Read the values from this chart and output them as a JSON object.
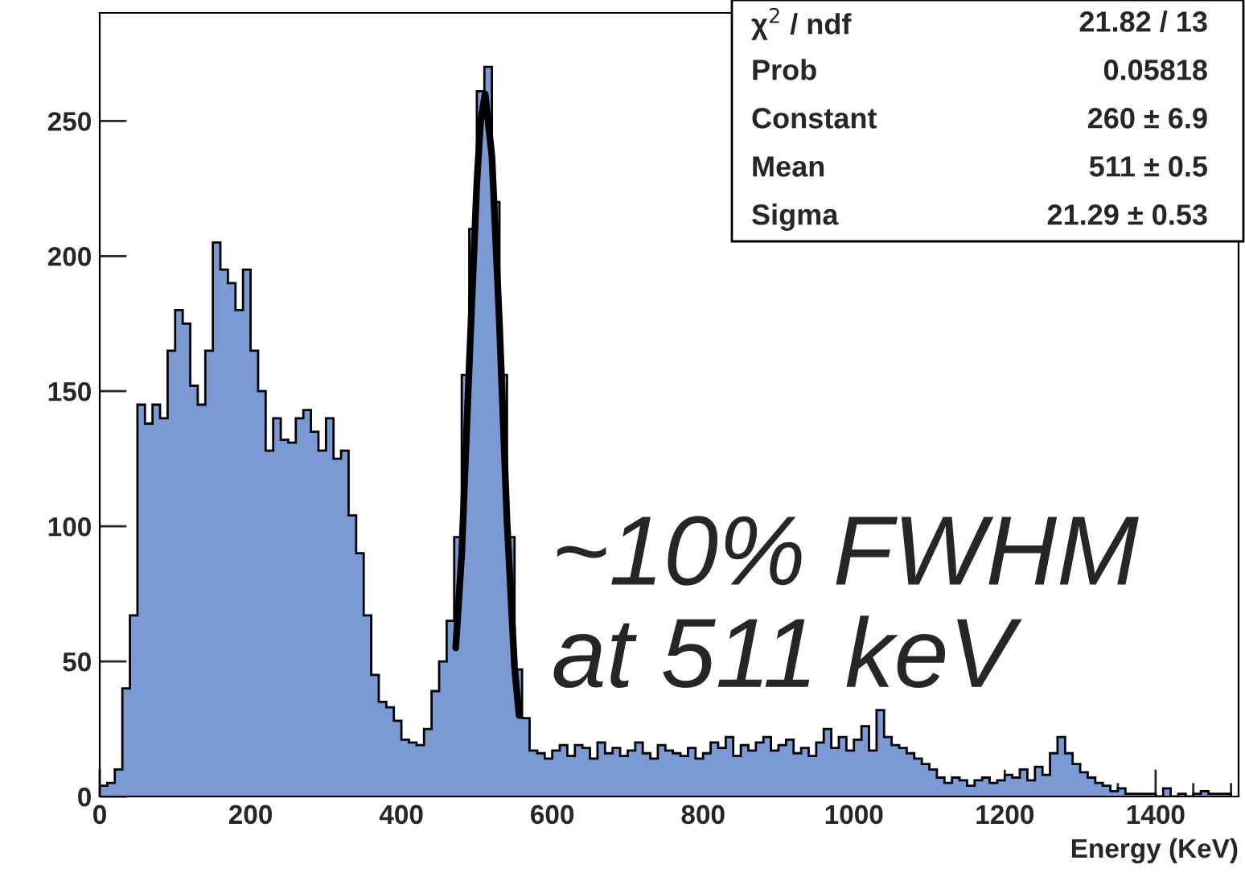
{
  "chart_data": {
    "type": "histogram",
    "xlabel": "Energy (KeV)",
    "annotations": [
      "~10% FWHM\nat 511 keV",
      "χ$^{2}$ / ndf\t21.82 / 13",
      "Prob\t0.05818",
      "Constant\t260 ± 6.9",
      "Mean\t511 ± 0.5",
      "Sigma\t21.29 ± 0.53"
    ],
    "xlim": [
      0,
      1510
    ],
    "ylim": [
      0,
      290
    ],
    "xticks": [
      0,
      {
        "value": 50,
        "label": null
      },
      {
        "value": 100,
        "label": null
      },
      {
        "value": 150,
        "label": null
      },
      200,
      {
        "value": 250,
        "label": null
      },
      {
        "value": 300,
        "label": null
      },
      {
        "value": 350,
        "label": null
      },
      400,
      {
        "value": 450,
        "label": null
      },
      {
        "value": 500,
        "label": null
      },
      {
        "value": 550,
        "label": null
      },
      600,
      {
        "value": 650,
        "label": null
      },
      {
        "value": 700,
        "label": null
      },
      {
        "value": 750,
        "label": null
      },
      800,
      {
        "value": 850,
        "label": null
      },
      {
        "value": 900,
        "label": null
      },
      {
        "value": 950,
        "label": null
      },
      1000,
      {
        "value": 1050,
        "label": null
      },
      {
        "value": 1100,
        "label": null
      },
      {
        "value": 1150,
        "label": null
      },
      1200,
      {
        "value": 1250,
        "label": null
      },
      {
        "value": 1300,
        "label": null
      },
      {
        "value": 1350,
        "label": null
      },
      1400,
      {
        "value": 1450,
        "label": null
      },
      {
        "value": 1500,
        "label": null
      }
    ],
    "yticks": [
      0,
      50,
      100,
      150,
      200,
      250
    ],
    "series": [
      {
        "type": "histogram",
        "color": "#7b9ad3",
        "bins": [
          0,
          10,
          20,
          30,
          40,
          50,
          60,
          70,
          80,
          90,
          100,
          110,
          120,
          130,
          140,
          150,
          160,
          170,
          180,
          190,
          200,
          210,
          220,
          230,
          240,
          250,
          260,
          270,
          280,
          290,
          300,
          310,
          320,
          330,
          340,
          350,
          360,
          370,
          380,
          390,
          400,
          410,
          420,
          430,
          440,
          450,
          460,
          470,
          480,
          490,
          500,
          510,
          520,
          530,
          540,
          550,
          560,
          570,
          580,
          590,
          600,
          610,
          620,
          630,
          640,
          650,
          660,
          670,
          680,
          690,
          700,
          710,
          720,
          730,
          740,
          750,
          760,
          770,
          780,
          790,
          800,
          810,
          820,
          830,
          840,
          850,
          860,
          870,
          880,
          890,
          900,
          910,
          920,
          930,
          940,
          950,
          960,
          970,
          980,
          990,
          1000,
          1010,
          1020,
          1030,
          1040,
          1050,
          1060,
          1070,
          1080,
          1090,
          1100,
          1110,
          1120,
          1130,
          1140,
          1150,
          1160,
          1170,
          1180,
          1190,
          1200,
          1210,
          1220,
          1230,
          1240,
          1250,
          1260,
          1270,
          1280,
          1290,
          1300,
          1310,
          1320,
          1330,
          1340,
          1350,
          1360,
          1370,
          1380,
          1390,
          1400,
          1410,
          1420,
          1430,
          1440,
          1450,
          1460,
          1470,
          1480,
          1490,
          1500
        ],
        "values": [
          4,
          5,
          10,
          40,
          67,
          145,
          138,
          145,
          140,
          165,
          180,
          175,
          152,
          145,
          165,
          205,
          195,
          190,
          180,
          195,
          165,
          150,
          128,
          140,
          132,
          131,
          140,
          143,
          135,
          128,
          140,
          125,
          128,
          104,
          90,
          67,
          45,
          35,
          33,
          28,
          21,
          20,
          19,
          25,
          39,
          50,
          65,
          96,
          156,
          210,
          261,
          270,
          220,
          156,
          96,
          47,
          29,
          17,
          16,
          14,
          17,
          19,
          15,
          19,
          18,
          14,
          20,
          16,
          18,
          15,
          17,
          20,
          16,
          14,
          19,
          17,
          16,
          15,
          18,
          14,
          16,
          20,
          18,
          22,
          15,
          19,
          17,
          20,
          22,
          17,
          19,
          21,
          16,
          18,
          15,
          20,
          25,
          18,
          22,
          17,
          21,
          26,
          17,
          32,
          22,
          19,
          18,
          16,
          14,
          12,
          10,
          7,
          5,
          7,
          6,
          4,
          6,
          7,
          5,
          6,
          8,
          7,
          10,
          6,
          11,
          8,
          16,
          22,
          16,
          12,
          9,
          7,
          5,
          4,
          2,
          3,
          1,
          1,
          1,
          1,
          0,
          3,
          0,
          1,
          0,
          1,
          2,
          1,
          1,
          1
        ]
      },
      {
        "type": "line",
        "color": "#000000",
        "x": [
          472,
          480,
          490,
          500,
          505,
          511,
          520,
          530,
          540,
          550,
          556
        ],
        "values": [
          55,
          90,
          160,
          227,
          250,
          260,
          237,
          175,
          102,
          48,
          30
        ]
      }
    ]
  }
}
